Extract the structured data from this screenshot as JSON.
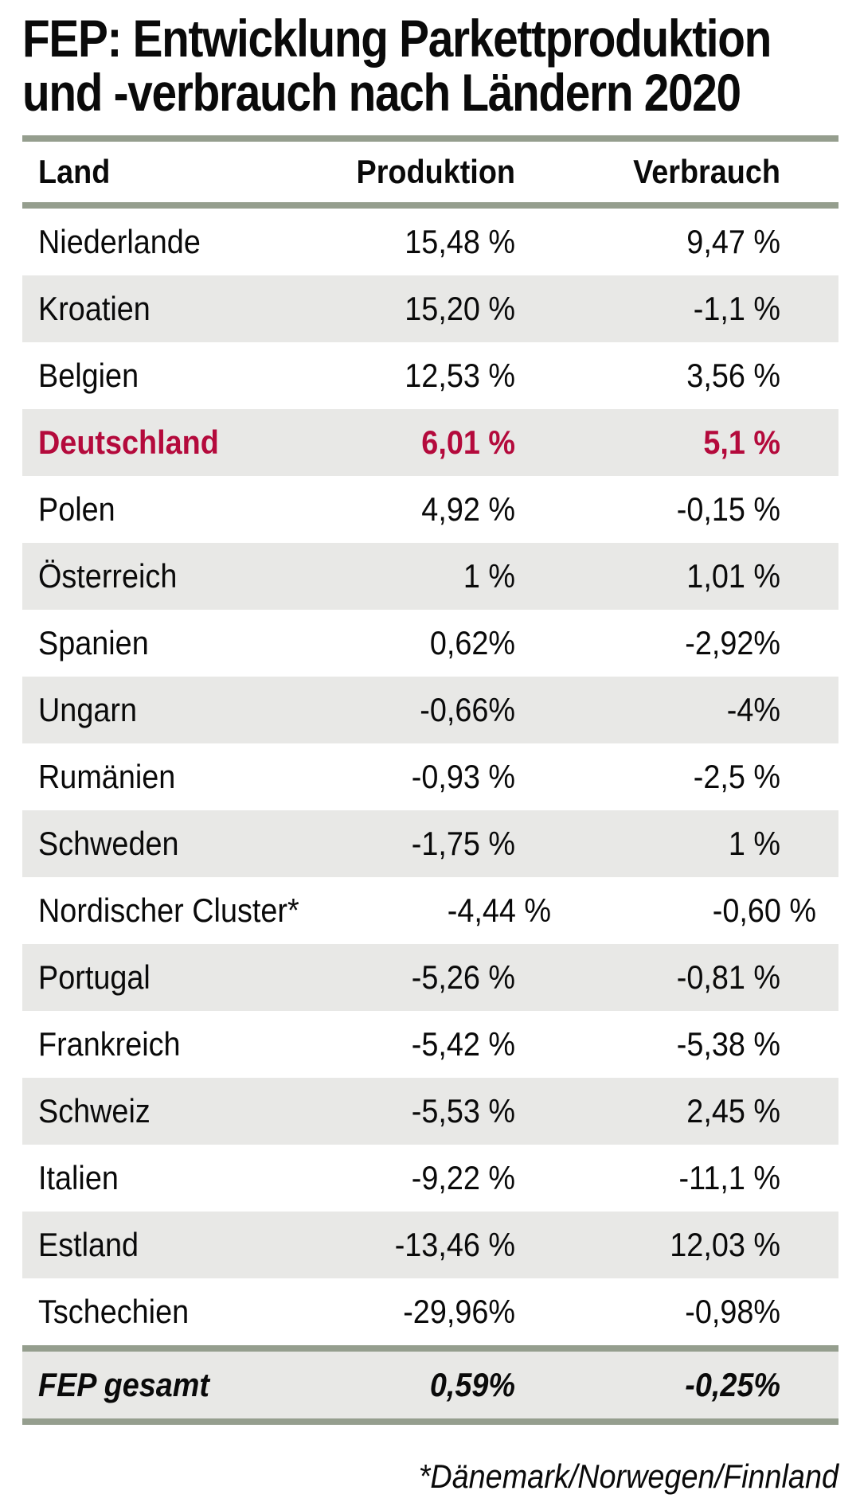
{
  "title": {
    "line1": "FEP: Entwicklung Parkettproduktion",
    "line2": "und -verbrauch nach Ländern 2020"
  },
  "table": {
    "headers": {
      "land": "Land",
      "produktion": "Produktion",
      "verbrauch": "Verbrauch"
    },
    "rows": [
      {
        "land": "Niederlande",
        "produktion": "15,48 %",
        "verbrauch": "9,47 %",
        "highlight": false
      },
      {
        "land": "Kroatien",
        "produktion": "15,20 %",
        "verbrauch": "-1,1 %",
        "highlight": false
      },
      {
        "land": "Belgien",
        "produktion": "12,53 %",
        "verbrauch": "3,56 %",
        "highlight": false
      },
      {
        "land": "Deutschland",
        "produktion": "6,01 %",
        "verbrauch": "5,1 %",
        "highlight": true
      },
      {
        "land": "Polen",
        "produktion": "4,92 %",
        "verbrauch": "-0,15 %",
        "highlight": false
      },
      {
        "land": "Österreich",
        "produktion": "1 %",
        "verbrauch": "1,01 %",
        "highlight": false
      },
      {
        "land": "Spanien",
        "produktion": "0,62%",
        "verbrauch": "-2,92%",
        "highlight": false
      },
      {
        "land": "Ungarn",
        "produktion": "-0,66%",
        "verbrauch": "-4%",
        "highlight": false
      },
      {
        "land": "Rumänien",
        "produktion": "-0,93 %",
        "verbrauch": "-2,5 %",
        "highlight": false
      },
      {
        "land": "Schweden",
        "produktion": "-1,75 %",
        "verbrauch": "1 %",
        "highlight": false
      },
      {
        "land": "Nordischer Cluster*",
        "produktion": "-4,44 %",
        "verbrauch": "-0,60 %",
        "highlight": false
      },
      {
        "land": "Portugal",
        "produktion": "-5,26 %",
        "verbrauch": "-0,81 %",
        "highlight": false
      },
      {
        "land": "Frankreich",
        "produktion": "-5,42 %",
        "verbrauch": "-5,38 %",
        "highlight": false
      },
      {
        "land": "Schweiz",
        "produktion": "-5,53 %",
        "verbrauch": "2,45 %",
        "highlight": false
      },
      {
        "land": "Italien",
        "produktion": "-9,22 %",
        "verbrauch": "-11,1 %",
        "highlight": false
      },
      {
        "land": "Estland",
        "produktion": "-13,46 %",
        "verbrauch": "12,03 %",
        "highlight": false
      },
      {
        "land": "Tschechien",
        "produktion": "-29,96%",
        "verbrauch": "-0,98%",
        "highlight": false
      }
    ],
    "total": {
      "land": "FEP gesamt",
      "produktion": "0,59%",
      "verbrauch": "-0,25%"
    }
  },
  "footnote": "*Dänemark/Norwegen/Finnland",
  "colors": {
    "highlight_red": "#b40a3c",
    "rule_green_grey": "#959e8e",
    "row_alt_grey": "#e8e8e6",
    "text_black": "#0a0a0a",
    "background": "#ffffff"
  },
  "chart_data": {
    "type": "table",
    "title": "FEP: Entwicklung Parkettproduktion und -verbrauch nach Ländern 2020",
    "columns": [
      "Land",
      "Produktion",
      "Verbrauch"
    ],
    "unit": "percent",
    "categories": [
      "Niederlande",
      "Kroatien",
      "Belgien",
      "Deutschland",
      "Polen",
      "Österreich",
      "Spanien",
      "Ungarn",
      "Rumänien",
      "Schweden",
      "Nordischer Cluster*",
      "Portugal",
      "Frankreich",
      "Schweiz",
      "Italien",
      "Estland",
      "Tschechien"
    ],
    "series": [
      {
        "name": "Produktion",
        "values": [
          15.48,
          15.2,
          12.53,
          6.01,
          4.92,
          1,
          0.62,
          -0.66,
          -0.93,
          -1.75,
          -4.44,
          -5.26,
          -5.42,
          -5.53,
          -9.22,
          -13.46,
          -29.96
        ]
      },
      {
        "name": "Verbrauch",
        "values": [
          9.47,
          -1.1,
          3.56,
          5.1,
          -0.15,
          1.01,
          -2.92,
          -4,
          -2.5,
          1,
          -0.6,
          -0.81,
          -5.38,
          2.45,
          -11.1,
          12.03,
          -0.98
        ]
      }
    ],
    "total_row": {
      "name": "FEP gesamt",
      "produktion": 0.59,
      "verbrauch": -0.25
    },
    "highlighted_category": "Deutschland",
    "footnote": "*Dänemark/Norwegen/Finnland"
  }
}
